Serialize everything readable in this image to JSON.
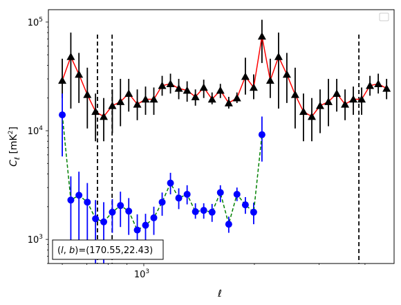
{
  "chart_data": {
    "type": "line",
    "xlabel": "ℓ",
    "ylabel": "C",
    "ylabel_subscript": "ℓ",
    "ylabel_units_prefix": "  [mK",
    "ylabel_units_sup": "2",
    "ylabel_units_suffix": "]",
    "xscale": "log",
    "yscale": "log",
    "xlim": [
      550,
      4800
    ],
    "ylim": [
      600,
      130000
    ],
    "x_tick_labels": [
      {
        "value": 1000,
        "base": "10",
        "exp": "3"
      }
    ],
    "y_tick_labels": [
      {
        "value": 1000,
        "base": "10",
        "exp": "3"
      },
      {
        "value": 10000,
        "base": "10",
        "exp": "4"
      },
      {
        "value": 100000,
        "base": "10",
        "exp": "5"
      }
    ],
    "vlines": [
      748,
      820,
      3850
    ],
    "annotation": "(l,b)=(170.55,22.43)",
    "annotation_parts": {
      "l": "l",
      "b": "b",
      "values": "=(170.55,22.43)"
    },
    "legend_position": "upper right",
    "series": [
      {
        "marker": "triangle",
        "marker_color": "#000000",
        "line_color": "#ff0000",
        "line_style": "solid",
        "x": [
          600,
          633,
          666,
          702,
          739,
          778,
          821,
          864,
          910,
          960,
          1011,
          1065,
          1122,
          1182,
          1245,
          1312,
          1382,
          1456,
          1534,
          1616,
          1703,
          1793,
          1890,
          1991,
          2097,
          2209,
          2327,
          2451,
          2582,
          2720,
          2866,
          3019,
          3181,
          3351,
          3530,
          3718,
          3917,
          4126,
          4347,
          4580
        ],
        "y": [
          29000,
          48000,
          33000,
          21500,
          15000,
          13500,
          17000,
          18500,
          22000,
          17500,
          19500,
          19500,
          26000,
          27000,
          24500,
          23500,
          20500,
          25000,
          19500,
          23500,
          18000,
          20000,
          31500,
          25000,
          74000,
          29000,
          48000,
          33000,
          21500,
          15000,
          13500,
          17000,
          18500,
          22000,
          17500,
          19500,
          19500,
          26000,
          27000,
          24500
        ],
        "yerr_low": [
          20000,
          16000,
          18000,
          10500,
          8000,
          8000,
          9500,
          11000,
          15000,
          12500,
          14000,
          14000,
          21000,
          22000,
          19500,
          18500,
          17000,
          20000,
          17500,
          20000,
          16000,
          18000,
          21500,
          19500,
          42000,
          20000,
          16000,
          18000,
          10500,
          8000,
          8000,
          9500,
          11000,
          15000,
          12500,
          14000,
          14000,
          21000,
          22000,
          19500
        ],
        "yerr_high": [
          46000,
          80000,
          52000,
          38000,
          22000,
          20000,
          24000,
          30000,
          30000,
          24000,
          25500,
          25000,
          32000,
          33500,
          30000,
          28500,
          24000,
          29500,
          22500,
          27000,
          20500,
          22500,
          47000,
          33000,
          105000,
          46000,
          80000,
          52000,
          38000,
          22000,
          20000,
          24000,
          30000,
          30000,
          24000,
          25500,
          25000,
          32000,
          33500,
          30000
        ]
      },
      {
        "marker": "circle",
        "marker_color": "#0000ff",
        "line_color": "#008000",
        "line_style": "dashed",
        "x": [
          600,
          633,
          666,
          702,
          739,
          778,
          821,
          864,
          910,
          960,
          1011,
          1065,
          1122,
          1182,
          1245,
          1312,
          1382,
          1456,
          1534,
          1616,
          1703,
          1793,
          1890,
          1991,
          2097
        ],
        "y": [
          14000,
          2300,
          2550,
          2200,
          1550,
          1450,
          1780,
          2050,
          1820,
          1220,
          1350,
          1580,
          2200,
          3300,
          2400,
          2600,
          1800,
          1850,
          1780,
          2700,
          1380,
          2600,
          2080,
          1780,
          9200
        ],
        "yerr_low": [
          5800,
          850,
          850,
          800,
          600,
          600,
          1150,
          1300,
          1100,
          830,
          950,
          1100,
          1650,
          2600,
          1900,
          2100,
          1550,
          1550,
          1450,
          2200,
          1150,
          2250,
          1720,
          1380,
          5200
        ],
        "yerr_high": [
          22000,
          3800,
          4200,
          3300,
          2300,
          2200,
          2350,
          2750,
          2400,
          1700,
          1720,
          2000,
          2700,
          4100,
          2950,
          3150,
          2150,
          2150,
          2120,
          3150,
          1620,
          3000,
          2450,
          2180,
          13500
        ]
      }
    ]
  }
}
